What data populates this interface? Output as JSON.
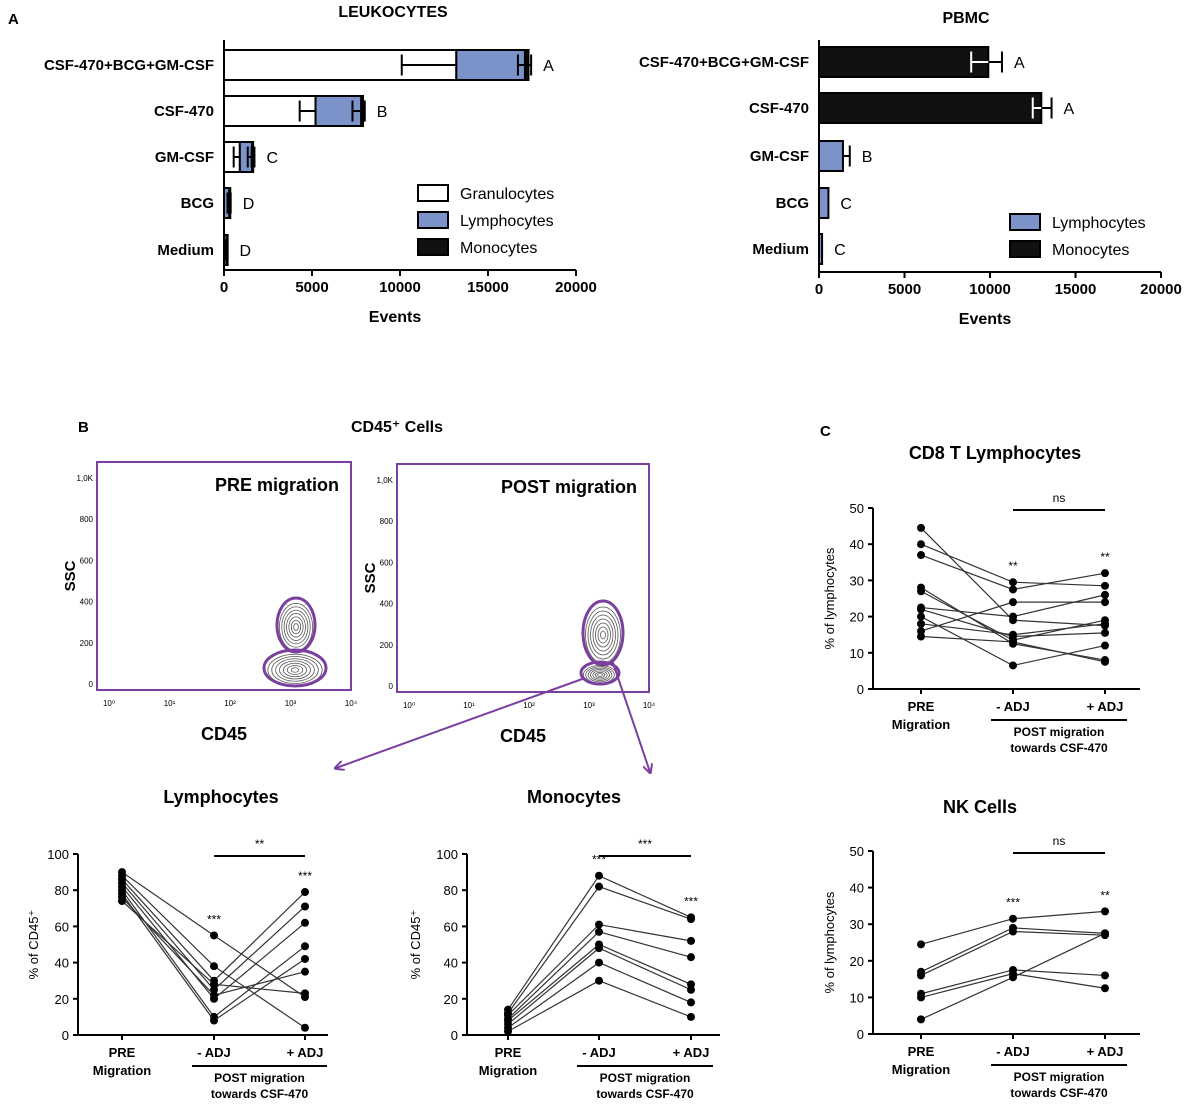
{
  "panel_labels": {
    "a": "A",
    "b": "B",
    "c": "C"
  },
  "chart_data": [
    {
      "id": "leukocytes",
      "type": "bar",
      "orientation": "horizontal",
      "stacked": true,
      "title": "LEUKOCYTES",
      "xlabel": "Events",
      "xlim": [
        0,
        20000
      ],
      "xticks": [
        0,
        5000,
        10000,
        15000,
        20000
      ],
      "categories": [
        "CSF-470+BCG+GM-CSF",
        "CSF-470",
        "GM-CSF",
        "BCG",
        "Medium"
      ],
      "letters": [
        "A",
        "B",
        "C",
        "D",
        "D"
      ],
      "series": [
        {
          "name": "Granulocytes",
          "color": "#ffffff",
          "values": [
            13200,
            5200,
            900,
            0,
            0
          ],
          "errors": [
            3100,
            900,
            350,
            0,
            0
          ]
        },
        {
          "name": "Lymphocytes",
          "color": "#7b93c9",
          "values": [
            3900,
            2600,
            700,
            300,
            150
          ],
          "errors": [
            400,
            500,
            250,
            100,
            50
          ]
        },
        {
          "name": "Monocytes",
          "color": "#111111",
          "values": [
            200,
            100,
            50,
            50,
            30
          ],
          "errors": [
            150,
            100,
            80,
            30,
            20
          ]
        }
      ],
      "legend": [
        "Granulocytes",
        "Lymphocytes",
        "Monocytes"
      ],
      "legend_position": "bottom-right"
    },
    {
      "id": "pbmc",
      "type": "bar",
      "orientation": "horizontal",
      "stacked": true,
      "title": "PBMC",
      "xlabel": "Events",
      "xlim": [
        0,
        20000
      ],
      "xticks": [
        0,
        5000,
        10000,
        15000,
        20000
      ],
      "categories": [
        "CSF-470+BCG+GM-CSF",
        "CSF-470",
        "GM-CSF",
        "BCG",
        "Medium"
      ],
      "letters": [
        "A",
        "A",
        "B",
        "C",
        "C"
      ],
      "series": [
        {
          "name": "Lymphocytes",
          "color": "#7b93c9",
          "values": [
            0,
            0,
            1400,
            550,
            180
          ],
          "errors": [
            0,
            0,
            400,
            0,
            0
          ]
        },
        {
          "name": "Monocytes",
          "color": "#111111",
          "values": [
            9900,
            13000,
            0,
            0,
            0
          ],
          "errors": [
            800,
            600,
            0,
            0,
            0
          ]
        }
      ],
      "inner_errors": [
        1000,
        500,
        0,
        0,
        0
      ],
      "legend": [
        "Lymphocytes",
        "Monocytes"
      ],
      "legend_position": "bottom-right"
    },
    {
      "id": "cd45_plots",
      "type": "contour",
      "title": "CD45⁺ Cells",
      "plots": [
        {
          "label": "PRE migration",
          "xlabel": "CD45",
          "ylabel": "SSC"
        },
        {
          "label": "POST migration",
          "xlabel": "CD45",
          "ylabel": "SSC"
        }
      ],
      "yticks": [
        "0",
        "200",
        "400",
        "600",
        "800",
        "1,0K"
      ],
      "xticks": [
        "10⁰",
        "10¹",
        "10²",
        "10³",
        "10⁴"
      ]
    },
    {
      "id": "lymphocytes",
      "type": "scatter",
      "paired": true,
      "title": "Lymphocytes",
      "ylabel": "% of CD45⁺",
      "ylim": [
        0,
        100
      ],
      "yticks": [
        0,
        20,
        40,
        60,
        80,
        100
      ],
      "x": [
        "PRE Migration",
        "- ADJ",
        "+ ADJ"
      ],
      "group_label": "POST migration towards CSF-470",
      "series": [
        {
          "name": "s1",
          "values": [
            90,
            55,
            21
          ]
        },
        {
          "name": "s2",
          "values": [
            88,
            38,
            4
          ]
        },
        {
          "name": "s3",
          "values": [
            86,
            30,
            79
          ]
        },
        {
          "name": "s4",
          "values": [
            84,
            25,
            71
          ]
        },
        {
          "name": "s5",
          "values": [
            82,
            20,
            62
          ]
        },
        {
          "name": "s6",
          "values": [
            80,
            10,
            49
          ]
        },
        {
          "name": "s7",
          "values": [
            78,
            8,
            42
          ]
        },
        {
          "name": "s8",
          "values": [
            76,
            22,
            35
          ]
        },
        {
          "name": "s9",
          "values": [
            74,
            28,
            23
          ]
        }
      ],
      "sig_markers": [
        {
          "x": "- ADJ",
          "text": "***"
        },
        {
          "x": "+ ADJ",
          "text": "***"
        }
      ],
      "comparison": {
        "from": "- ADJ",
        "to": "+ ADJ",
        "text": "**"
      }
    },
    {
      "id": "monocytes",
      "type": "scatter",
      "paired": true,
      "title": "Monocytes",
      "ylabel": "% of CD45⁺",
      "ylim": [
        0,
        100
      ],
      "yticks": [
        0,
        20,
        40,
        60,
        80,
        100
      ],
      "x": [
        "PRE Migration",
        "- ADJ",
        "+ ADJ"
      ],
      "group_label": "POST migration towards CSF-470",
      "series": [
        {
          "name": "s1",
          "values": [
            14,
            88,
            65
          ]
        },
        {
          "name": "s2",
          "values": [
            12,
            82,
            64
          ]
        },
        {
          "name": "s3",
          "values": [
            11,
            61,
            52
          ]
        },
        {
          "name": "s4",
          "values": [
            9,
            57,
            43
          ]
        },
        {
          "name": "s5",
          "values": [
            8,
            50,
            28
          ]
        },
        {
          "name": "s6",
          "values": [
            6,
            48,
            25
          ]
        },
        {
          "name": "s7",
          "values": [
            4,
            40,
            18
          ]
        },
        {
          "name": "s8",
          "values": [
            2,
            30,
            10
          ]
        }
      ],
      "sig_markers": [
        {
          "x": "- ADJ",
          "text": "***"
        },
        {
          "x": "+ ADJ",
          "text": "***"
        }
      ],
      "comparison": {
        "from": "- ADJ",
        "to": "+ ADJ",
        "text": "***"
      }
    },
    {
      "id": "cd8",
      "type": "scatter",
      "paired": true,
      "title": "CD8 T Lymphocytes",
      "ylabel": "% of lymphocytes",
      "ylim": [
        0,
        50
      ],
      "yticks": [
        0,
        10,
        20,
        30,
        40,
        50
      ],
      "x": [
        "PRE Migration",
        "- ADJ",
        "+ ADJ"
      ],
      "group_label": "POST migration towards CSF-470",
      "series": [
        {
          "name": "s1",
          "values": [
            44.5,
            19,
            17.5
          ]
        },
        {
          "name": "s2",
          "values": [
            40,
            29.5,
            28.5
          ]
        },
        {
          "name": "s3",
          "values": [
            37,
            27.5,
            32
          ]
        },
        {
          "name": "s4",
          "values": [
            28,
            12.5,
            8
          ]
        },
        {
          "name": "s5",
          "values": [
            27,
            13.5,
            19
          ]
        },
        {
          "name": "s6",
          "values": [
            22.5,
            20,
            26
          ]
        },
        {
          "name": "s7",
          "values": [
            22,
            14.5,
            15.5
          ]
        },
        {
          "name": "s8",
          "values": [
            20,
            6.5,
            12
          ]
        },
        {
          "name": "s9",
          "values": [
            18,
            15,
            18
          ]
        },
        {
          "name": "s10",
          "values": [
            16,
            24,
            24
          ]
        },
        {
          "name": "s11",
          "values": [
            14.5,
            13,
            7.5
          ]
        }
      ],
      "sig_markers": [
        {
          "x": "- ADJ",
          "text": "**"
        },
        {
          "x": "+ ADJ",
          "text": "**"
        }
      ],
      "comparison": {
        "from": "- ADJ",
        "to": "+ ADJ",
        "text": "ns"
      }
    },
    {
      "id": "nk",
      "type": "scatter",
      "paired": true,
      "title": "NK Cells",
      "ylabel": "% of lymphocytes",
      "ylim": [
        0,
        50
      ],
      "yticks": [
        0,
        10,
        20,
        30,
        40,
        50
      ],
      "x": [
        "PRE Migration",
        "- ADJ",
        "+ ADJ"
      ],
      "group_label": "POST migration towards CSF-470",
      "series": [
        {
          "name": "s1",
          "values": [
            24.5,
            31.5,
            33.5
          ]
        },
        {
          "name": "s2",
          "values": [
            17,
            29,
            27.5
          ]
        },
        {
          "name": "s3",
          "values": [
            16,
            28,
            27
          ]
        },
        {
          "name": "s4",
          "values": [
            11,
            17.5,
            16
          ]
        },
        {
          "name": "s5",
          "values": [
            10,
            16.5,
            12.5
          ]
        },
        {
          "name": "s6",
          "values": [
            4,
            15.5,
            27.5
          ]
        }
      ],
      "sig_markers": [
        {
          "x": "- ADJ",
          "text": "***"
        },
        {
          "x": "+ ADJ",
          "text": "**"
        }
      ],
      "comparison": {
        "from": "- ADJ",
        "to": "+ ADJ",
        "text": "ns"
      }
    }
  ]
}
